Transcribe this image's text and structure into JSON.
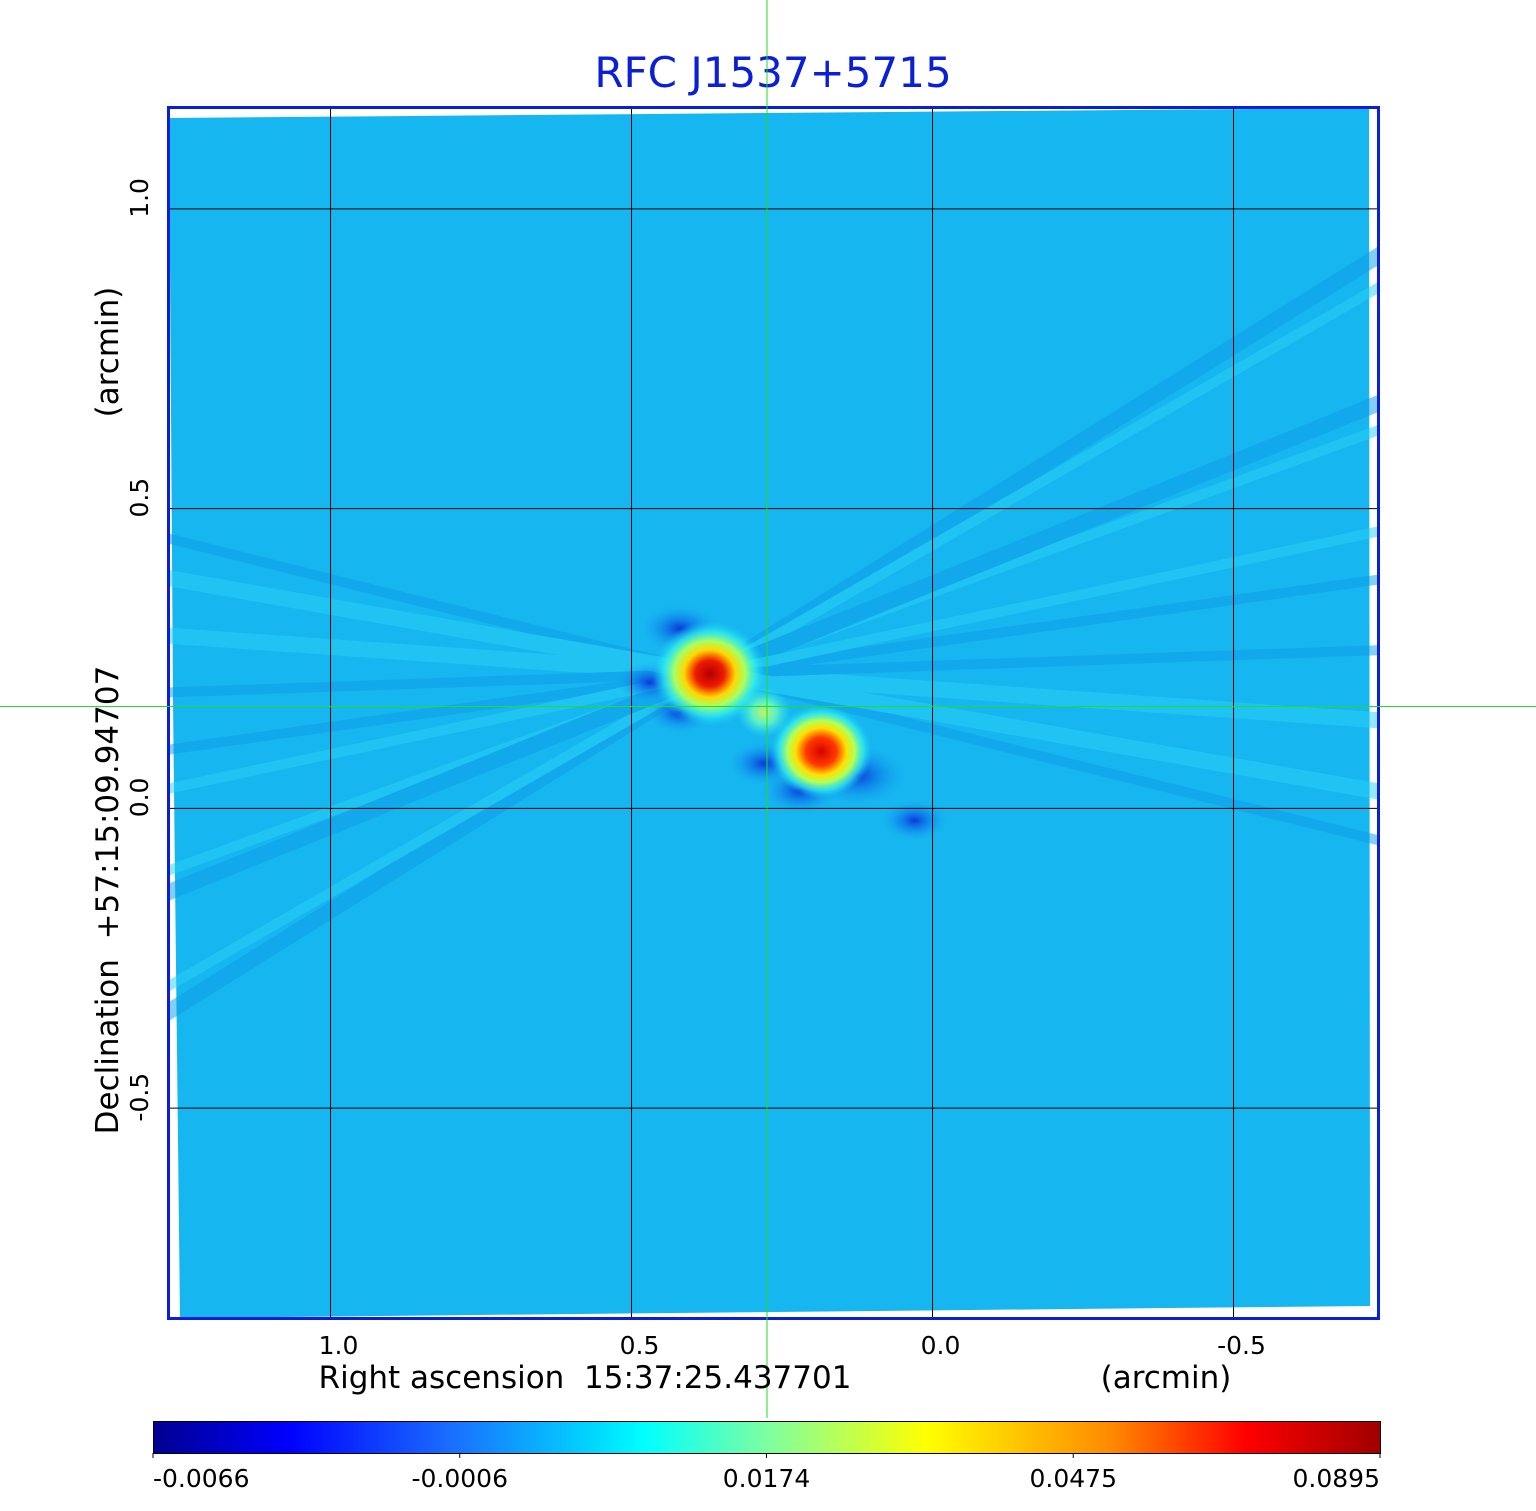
{
  "chart_data": {
    "type": "heatmap",
    "title": "RFC J1537+5715",
    "xlabel": "Right ascension  15:37:25.437701",
    "xunit": "(arcmin)",
    "ylabel": "Declination  +57:15:09.94707",
    "yunit": "(arcmin)",
    "xlim": [
      1.27,
      -0.74
    ],
    "ylim": [
      -0.85,
      1.17
    ],
    "x_ticks": [
      1.0,
      0.5,
      0.0,
      -0.5
    ],
    "x_tick_labels": [
      "1.0",
      "0.5",
      "0.0",
      "-0.5"
    ],
    "y_ticks": [
      1.0,
      0.5,
      0.0,
      -0.5
    ],
    "y_tick_labels": [
      "1.0",
      "0.5",
      "0.0",
      "-0.5"
    ],
    "grid": true,
    "crosshair": {
      "x": 0.275,
      "y": 0.17,
      "color": "#22dd22"
    },
    "colorbar": {
      "colormap": "jet",
      "tick_labels": [
        "-0.0066",
        "-0.0006",
        "0.0174",
        "0.0475",
        "0.0895"
      ],
      "vmin": -0.0066,
      "vmax": 0.0895
    },
    "background_level": -0.0004,
    "sources": [
      {
        "x": 0.37,
        "y": 0.225,
        "peak": 0.0895
      },
      {
        "x": 0.185,
        "y": 0.095,
        "peak": 0.075
      },
      {
        "x": 0.28,
        "y": 0.16,
        "peak": 0.02
      }
    ],
    "negative_features": [
      {
        "x": 0.42,
        "y": 0.3,
        "value": -0.004
      },
      {
        "x": 0.47,
        "y": 0.21,
        "value": -0.003
      },
      {
        "x": 0.42,
        "y": 0.16,
        "value": -0.003
      },
      {
        "x": 0.125,
        "y": 0.055,
        "value": -0.006
      },
      {
        "x": 0.22,
        "y": 0.03,
        "value": -0.004
      },
      {
        "x": 0.28,
        "y": 0.075,
        "value": -0.0035
      },
      {
        "x": 0.03,
        "y": -0.02,
        "value": -0.003
      }
    ]
  },
  "colors": {
    "title": "#0a1fd6",
    "frame": "#0a1fd6",
    "grid": "#000000",
    "crosshair": "#22dd22",
    "background": "#ffffff"
  }
}
